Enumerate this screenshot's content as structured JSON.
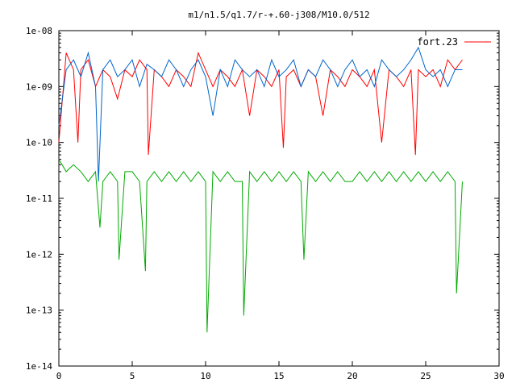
{
  "chart_data": {
    "type": "line",
    "title": "m1/n1.5/q1.7/r-+.60-j308/M10.0/512",
    "xlim": [
      0,
      30
    ],
    "ylim": [
      1e-14,
      1e-08
    ],
    "y_scale": "log",
    "x_ticks": [
      "0",
      "5",
      "10",
      "15",
      "20",
      "25",
      "30"
    ],
    "y_ticks": [
      "1e-08",
      "1e-09",
      "1e-10",
      "1e-11",
      "1e-12",
      "1e-13",
      "1e-14"
    ],
    "grid": false,
    "legend_position": "top-right",
    "x_extent": [
      0,
      27.5
    ],
    "series": [
      {
        "name": "fort.23",
        "color": "#ff0000",
        "x": [
          0,
          0.5,
          1,
          1.3,
          1.5,
          2,
          2.5,
          3,
          3.5,
          4,
          4.5,
          5,
          5.5,
          6,
          6.1,
          6.5,
          7,
          7.5,
          8,
          8.5,
          9,
          9.5,
          10,
          10.5,
          11,
          11.5,
          12,
          12.5,
          13,
          13.5,
          14,
          14.5,
          15,
          15.3,
          15.5,
          16,
          16.5,
          17,
          17.5,
          18,
          18.5,
          19,
          19.5,
          20,
          20.5,
          21,
          21.5,
          22,
          22.5,
          23,
          23.5,
          24,
          24.3,
          24.5,
          25,
          25.5,
          26,
          26.5,
          27,
          27.5
        ],
        "values": [
          1e-10,
          4e-09,
          2e-09,
          1e-10,
          2e-09,
          3e-09,
          1e-09,
          2e-09,
          1.5e-09,
          6e-10,
          2e-09,
          1.5e-09,
          3e-09,
          2e-09,
          6e-11,
          2e-09,
          1.5e-09,
          1e-09,
          2e-09,
          1.5e-09,
          1e-09,
          4e-09,
          2e-09,
          1e-09,
          2e-09,
          1.5e-09,
          1e-09,
          2e-09,
          3e-10,
          2e-09,
          1.5e-09,
          1e-09,
          2e-09,
          8e-11,
          1.5e-09,
          2e-09,
          1e-09,
          2e-09,
          1.5e-09,
          3e-10,
          2e-09,
          1.5e-09,
          1e-09,
          2e-09,
          1.5e-09,
          1e-09,
          2e-09,
          1e-10,
          2e-09,
          1.5e-09,
          1e-09,
          2e-09,
          6e-11,
          2e-09,
          1.5e-09,
          2e-09,
          1e-09,
          3e-09,
          2e-09,
          3e-09
        ]
      },
      {
        "name": "",
        "color": "#0066cc",
        "x": [
          0,
          0.5,
          1,
          1.5,
          2,
          2.5,
          2.7,
          3,
          3.5,
          4,
          4.5,
          5,
          5.5,
          6,
          6.5,
          7,
          7.5,
          8,
          8.5,
          9,
          9.5,
          10,
          10.5,
          11,
          11.5,
          12,
          12.5,
          13,
          13.5,
          14,
          14.5,
          15,
          15.5,
          16,
          16.5,
          17,
          17.5,
          18,
          18.5,
          19,
          19.5,
          20,
          20.5,
          21,
          21.5,
          22,
          22.5,
          23,
          23.5,
          24,
          24.5,
          25,
          25.5,
          26,
          26.5,
          27,
          27.5
        ],
        "values": [
          2e-10,
          2e-09,
          3e-09,
          1.5e-09,
          4e-09,
          1e-09,
          2e-11,
          2e-09,
          3e-09,
          1.5e-09,
          2e-09,
          3e-09,
          1e-09,
          2.5e-09,
          2e-09,
          1.5e-09,
          3e-09,
          2e-09,
          1e-09,
          2e-09,
          3e-09,
          1.5e-09,
          3e-10,
          2e-09,
          1e-09,
          3e-09,
          2e-09,
          1.5e-09,
          2e-09,
          1e-09,
          3e-09,
          1.5e-09,
          2e-09,
          3e-09,
          1e-09,
          2e-09,
          1.5e-09,
          3e-09,
          2e-09,
          1e-09,
          2e-09,
          3e-09,
          1.5e-09,
          2e-09,
          1e-09,
          3e-09,
          2e-09,
          1.5e-09,
          2e-09,
          3e-09,
          5e-09,
          2e-09,
          1.5e-09,
          2e-09,
          1e-09,
          2e-09,
          2e-09
        ]
      },
      {
        "name": "",
        "color": "#00aa00",
        "x": [
          0,
          0.5,
          1,
          1.5,
          2,
          2.5,
          2.8,
          3,
          3.5,
          4,
          4.1,
          4.5,
          5,
          5.5,
          5.9,
          6,
          6.5,
          7,
          7.5,
          8,
          8.5,
          9,
          9.5,
          10,
          10.1,
          10.5,
          11,
          11.5,
          12,
          12.5,
          12.6,
          13,
          13.5,
          14,
          14.5,
          15,
          15.5,
          16,
          16.5,
          16.7,
          17,
          17.5,
          18,
          18.5,
          19,
          19.5,
          20,
          20.5,
          21,
          21.5,
          22,
          22.5,
          23,
          23.5,
          24,
          24.5,
          25,
          25.5,
          26,
          26.5,
          27,
          27.1,
          27.5
        ],
        "values": [
          5e-11,
          3e-11,
          4e-11,
          3e-11,
          2e-11,
          3e-11,
          3e-12,
          2e-11,
          3e-11,
          2e-11,
          8e-13,
          3e-11,
          3e-11,
          2e-11,
          5e-13,
          2e-11,
          3e-11,
          2e-11,
          3e-11,
          2e-11,
          3e-11,
          2e-11,
          3e-11,
          2e-11,
          4e-14,
          3e-11,
          2e-11,
          3e-11,
          2e-11,
          2e-11,
          8e-14,
          3e-11,
          2e-11,
          3e-11,
          2e-11,
          3e-11,
          2e-11,
          3e-11,
          2e-11,
          8e-13,
          3e-11,
          2e-11,
          3e-11,
          2e-11,
          3e-11,
          2e-11,
          2e-11,
          3e-11,
          2e-11,
          3e-11,
          2e-11,
          3e-11,
          2e-11,
          3e-11,
          2e-11,
          3e-11,
          2e-11,
          3e-11,
          2e-11,
          3e-11,
          2e-11,
          2e-13,
          2e-11
        ]
      }
    ]
  }
}
